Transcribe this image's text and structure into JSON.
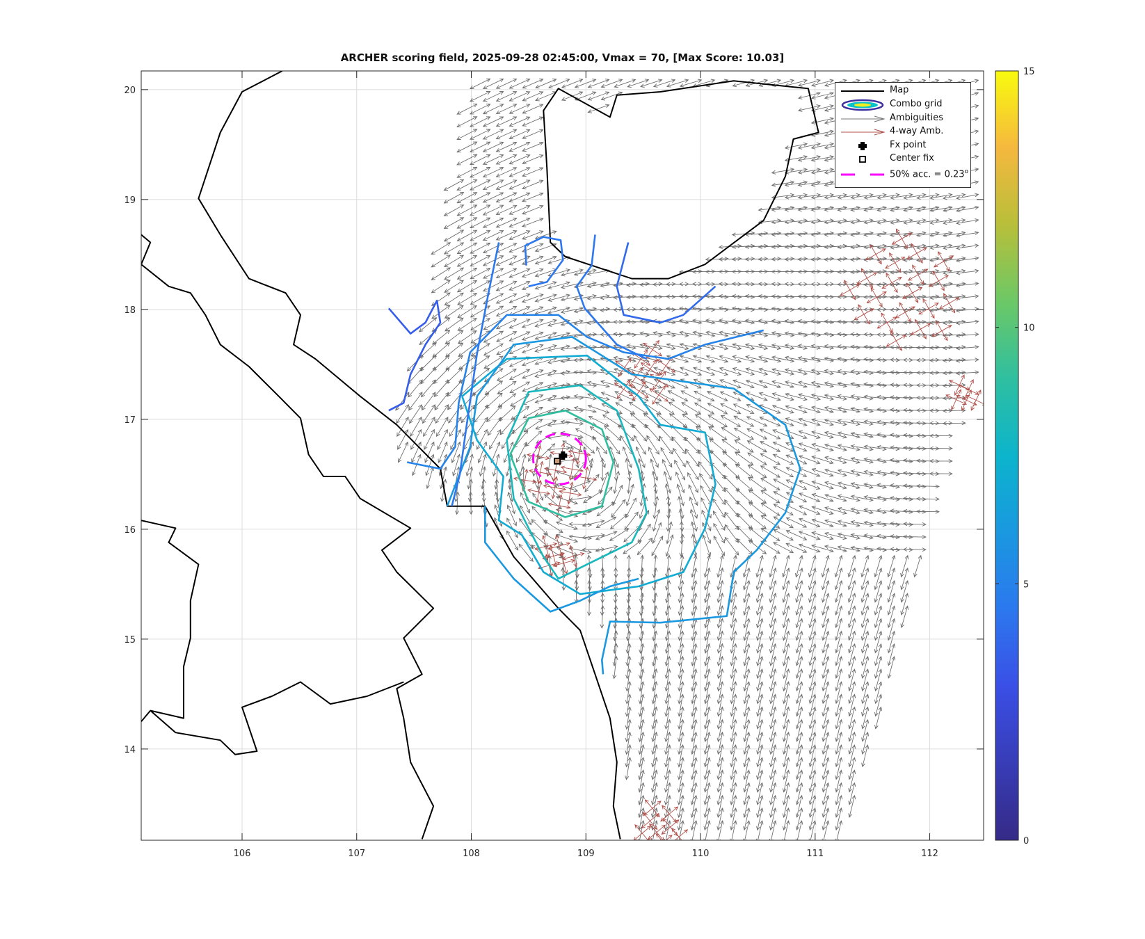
{
  "chart_data": {
    "type": "contour+quiver map",
    "title": "ARCHER scoring field, 2025-09-28 02:45:00, Vmax = 70, [Max Score: 10.03]",
    "xlabel": "",
    "ylabel": "",
    "xlim": [
      105.12,
      112.47
    ],
    "ylim": [
      13.17,
      20.17
    ],
    "xticks": [
      106,
      107,
      108,
      109,
      110,
      111,
      112
    ],
    "yticks": [
      14,
      15,
      16,
      17,
      18,
      19,
      20
    ],
    "grid": true,
    "colorbar": {
      "min": 0,
      "max": 15,
      "ticks": [
        0,
        5,
        10,
        15
      ],
      "colormap": "parula"
    },
    "legend": {
      "placement": "top-right",
      "items": [
        {
          "label": "Map",
          "symbol": "black-line"
        },
        {
          "label": "Combo grid",
          "symbol": "contour-ellipse"
        },
        {
          "label": "Ambiguities",
          "symbol": "gray-arrow"
        },
        {
          "label": "4-way Amb.",
          "symbol": "red-arrow"
        },
        {
          "label": "Fx point",
          "symbol": "black-filled-marker"
        },
        {
          "label": "Center fix",
          "symbol": "black-open-square"
        },
        {
          "label": "50% acc. = 0.23",
          "superscript": "o",
          "symbol": "magenta-dashed-line"
        }
      ]
    },
    "colors": {
      "map": "#000000",
      "ambiguity": "#6e6e6e",
      "four_way": "#b0504a",
      "accuracy": "#ff00ff",
      "grid": "#dcdcdc"
    },
    "fx_point": [
      108.8,
      16.67
    ],
    "center_fix": [
      108.75,
      16.62
    ],
    "accuracy_circle": {
      "center": [
        108.77,
        16.64
      ],
      "radius_deg": 0.23
    },
    "coastlines": [
      [
        [
          106.35,
          20.17
        ],
        [
          106.0,
          19.98
        ],
        [
          105.81,
          19.61
        ],
        [
          105.62,
          19.01
        ],
        [
          105.81,
          18.68
        ],
        [
          106.06,
          18.28
        ],
        [
          106.38,
          18.15
        ],
        [
          106.51,
          17.95
        ],
        [
          106.45,
          17.68
        ],
        [
          106.64,
          17.55
        ],
        [
          107.03,
          17.21
        ],
        [
          107.35,
          16.95
        ],
        [
          107.73,
          16.55
        ],
        [
          107.79,
          16.21
        ],
        [
          108.12,
          16.21
        ],
        [
          108.37,
          15.75
        ],
        [
          108.76,
          15.28
        ],
        [
          108.95,
          15.08
        ],
        [
          109.08,
          14.68
        ],
        [
          109.21,
          14.28
        ],
        [
          109.27,
          13.88
        ],
        [
          109.24,
          13.48
        ],
        [
          109.3,
          13.18
        ]
      ],
      [
        [
          108.66,
          19.28
        ],
        [
          108.63,
          19.81
        ],
        [
          108.76,
          20.01
        ],
        [
          109.21,
          19.75
        ],
        [
          109.27,
          19.95
        ],
        [
          109.65,
          19.98
        ],
        [
          110.29,
          20.08
        ],
        [
          110.94,
          20.01
        ],
        [
          111.03,
          19.61
        ],
        [
          110.81,
          19.55
        ],
        [
          110.74,
          19.21
        ],
        [
          110.55,
          18.81
        ],
        [
          110.04,
          18.41
        ],
        [
          109.72,
          18.28
        ],
        [
          109.4,
          18.28
        ],
        [
          108.82,
          18.48
        ],
        [
          108.69,
          18.61
        ],
        [
          108.66,
          19.28
        ]
      ],
      [
        [
          105.12,
          18.68
        ],
        [
          105.2,
          18.61
        ],
        [
          105.12,
          18.41
        ],
        [
          105.36,
          18.21
        ],
        [
          105.55,
          18.15
        ],
        [
          105.68,
          17.95
        ],
        [
          105.81,
          17.68
        ],
        [
          106.06,
          17.48
        ],
        [
          106.32,
          17.21
        ],
        [
          106.51,
          17.01
        ],
        [
          106.58,
          16.68
        ],
        [
          106.71,
          16.48
        ],
        [
          106.9,
          16.48
        ],
        [
          107.03,
          16.28
        ],
        [
          107.47,
          16.01
        ],
        [
          107.22,
          15.81
        ],
        [
          107.35,
          15.61
        ],
        [
          107.67,
          15.28
        ],
        [
          107.41,
          15.01
        ],
        [
          107.57,
          14.68
        ],
        [
          107.35,
          14.55
        ],
        [
          107.41,
          14.28
        ],
        [
          107.47,
          13.88
        ],
        [
          107.67,
          13.48
        ],
        [
          107.57,
          13.18
        ]
      ],
      [
        [
          105.12,
          16.08
        ],
        [
          105.42,
          16.01
        ],
        [
          105.36,
          15.88
        ],
        [
          105.62,
          15.68
        ],
        [
          105.55,
          15.35
        ],
        [
          105.55,
          15.01
        ],
        [
          105.49,
          14.75
        ],
        [
          105.49,
          14.28
        ],
        [
          105.2,
          14.35
        ],
        [
          105.12,
          14.25
        ]
      ],
      [
        [
          105.2,
          14.35
        ],
        [
          105.42,
          14.15
        ],
        [
          105.81,
          14.08
        ],
        [
          105.94,
          13.95
        ],
        [
          106.13,
          13.98
        ],
        [
          106.0,
          14.38
        ],
        [
          106.26,
          14.48
        ],
        [
          106.51,
          14.61
        ],
        [
          106.77,
          14.41
        ],
        [
          107.09,
          14.48
        ],
        [
          107.41,
          14.61
        ]
      ]
    ],
    "contours": [
      {
        "level": 9,
        "points": [
          [
            108.34,
            16.68
          ],
          [
            108.5,
            17.01
          ],
          [
            108.82,
            17.08
          ],
          [
            109.14,
            16.91
          ],
          [
            109.24,
            16.61
          ],
          [
            109.14,
            16.21
          ],
          [
            108.82,
            16.11
          ],
          [
            108.5,
            16.25
          ],
          [
            108.34,
            16.68
          ]
        ]
      },
      {
        "level": 8,
        "points": [
          [
            108.31,
            16.81
          ],
          [
            108.5,
            17.25
          ],
          [
            108.95,
            17.31
          ],
          [
            109.27,
            17.08
          ],
          [
            109.46,
            16.55
          ],
          [
            109.53,
            16.15
          ],
          [
            109.4,
            15.88
          ],
          [
            109.01,
            15.68
          ],
          [
            108.76,
            15.55
          ],
          [
            108.63,
            15.75
          ],
          [
            108.5,
            16.01
          ],
          [
            108.37,
            16.28
          ],
          [
            108.31,
            16.81
          ]
        ]
      },
      {
        "level": 7,
        "points": [
          [
            107.92,
            17.21
          ],
          [
            108.31,
            17.55
          ],
          [
            109.01,
            17.58
          ],
          [
            109.46,
            17.21
          ],
          [
            109.65,
            16.95
          ],
          [
            110.04,
            16.88
          ],
          [
            110.13,
            16.41
          ],
          [
            110.04,
            16.01
          ],
          [
            109.85,
            15.61
          ],
          [
            109.46,
            15.48
          ],
          [
            108.95,
            15.41
          ],
          [
            108.63,
            15.61
          ],
          [
            108.44,
            15.95
          ],
          [
            108.24,
            16.08
          ],
          [
            108.28,
            16.48
          ],
          [
            108.05,
            16.81
          ],
          [
            107.92,
            17.21
          ]
        ]
      },
      {
        "level": 6,
        "points": [
          [
            107.79,
            16.21
          ],
          [
            107.99,
            16.75
          ],
          [
            108.05,
            17.21
          ],
          [
            108.37,
            17.68
          ],
          [
            108.88,
            17.75
          ],
          [
            109.4,
            17.41
          ],
          [
            110.29,
            17.28
          ],
          [
            110.74,
            16.95
          ],
          [
            110.87,
            16.55
          ],
          [
            110.74,
            16.15
          ],
          [
            110.49,
            15.81
          ],
          [
            110.29,
            15.61
          ],
          [
            110.23,
            15.21
          ],
          [
            109.65,
            15.15
          ],
          [
            109.21,
            15.16
          ],
          [
            109.14,
            14.81
          ],
          [
            109.15,
            14.68
          ]
        ]
      },
      {
        "level": 6,
        "points": [
          [
            108.12,
            16.21
          ],
          [
            108.12,
            15.88
          ],
          [
            108.37,
            15.55
          ],
          [
            108.69,
            15.25
          ],
          [
            108.95,
            15.35
          ],
          [
            109.21,
            15.48
          ],
          [
            109.46,
            15.55
          ]
        ]
      },
      {
        "level": 5,
        "points": [
          [
            107.44,
            16.61
          ],
          [
            107.73,
            16.55
          ],
          [
            107.86,
            16.75
          ],
          [
            107.89,
            17.15
          ],
          [
            107.99,
            17.61
          ],
          [
            108.31,
            17.95
          ],
          [
            108.76,
            17.95
          ],
          [
            109.01,
            17.75
          ],
          [
            109.33,
            17.61
          ],
          [
            109.72,
            17.55
          ],
          [
            110.04,
            17.68
          ],
          [
            110.55,
            17.81
          ]
        ]
      },
      {
        "level": 4.5,
        "points": [
          [
            107.83,
            16.21
          ],
          [
            107.9,
            16.5
          ],
          [
            107.96,
            16.95
          ],
          [
            108.05,
            17.6
          ],
          [
            108.15,
            18.15
          ],
          [
            108.24,
            18.61
          ]
        ]
      },
      {
        "level": 4.5,
        "points": [
          [
            108.5,
            18.21
          ],
          [
            108.66,
            18.25
          ],
          [
            108.8,
            18.45
          ],
          [
            108.78,
            18.63
          ],
          [
            108.63,
            18.66
          ],
          [
            108.47,
            18.58
          ],
          [
            108.48,
            18.4
          ]
        ]
      },
      {
        "level": 4.5,
        "points": [
          [
            109.08,
            18.68
          ],
          [
            109.05,
            18.4
          ],
          [
            108.92,
            18.21
          ],
          [
            108.99,
            18.01
          ],
          [
            109.27,
            17.68
          ],
          [
            109.53,
            17.55
          ]
        ]
      },
      {
        "level": 4,
        "points": [
          [
            109.37,
            18.61
          ],
          [
            109.27,
            18.21
          ],
          [
            109.33,
            17.95
          ],
          [
            109.65,
            17.88
          ],
          [
            109.85,
            17.95
          ],
          [
            110.13,
            18.21
          ]
        ]
      },
      {
        "level": 3.5,
        "points": [
          [
            107.28,
            18.01
          ],
          [
            107.47,
            17.78
          ],
          [
            107.6,
            17.88
          ],
          [
            107.7,
            18.08
          ],
          [
            107.73,
            17.88
          ],
          [
            107.6,
            17.68
          ],
          [
            107.47,
            17.41
          ],
          [
            107.41,
            17.15
          ],
          [
            107.28,
            17.08
          ]
        ]
      }
    ],
    "vector_field": {
      "vortex_center": [
        108.78,
        16.65
      ],
      "spacing_deg": 0.115,
      "background_dir_deg": 215,
      "swath": [
        [
          108.05,
          20.17
        ],
        [
          112.47,
          20.17
        ],
        [
          112.47,
          17.75
        ],
        [
          111.26,
          13.18
        ],
        [
          109.46,
          13.18
        ],
        [
          109.21,
          15.15
        ],
        [
          108.37,
          15.88
        ],
        [
          107.35,
          16.68
        ],
        [
          107.35,
          17.08
        ],
        [
          107.67,
          18.01
        ],
        [
          107.86,
          19.15
        ]
      ]
    },
    "four_way_clusters": [
      {
        "center": [
          111.77,
          18.15
        ],
        "radius_deg": 0.5
      },
      {
        "center": [
          109.53,
          17.41
        ],
        "radius_deg": 0.25
      },
      {
        "center": [
          108.76,
          16.48
        ],
        "radius_deg": 0.3
      },
      {
        "center": [
          108.76,
          15.75
        ],
        "radius_deg": 0.15
      },
      {
        "center": [
          109.65,
          13.28
        ],
        "radius_deg": 0.2
      },
      {
        "center": [
          112.31,
          17.21
        ],
        "radius_deg": 0.12
      }
    ]
  }
}
